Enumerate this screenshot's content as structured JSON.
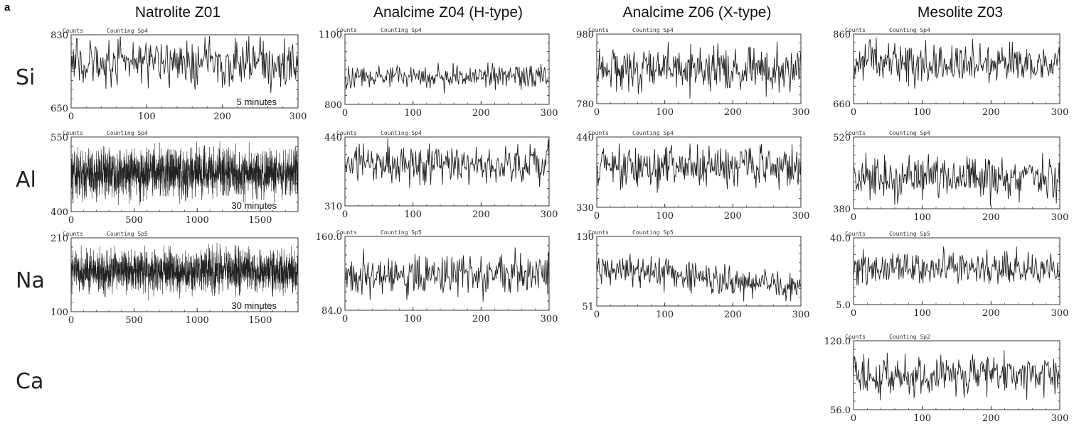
{
  "panel_letter": "a",
  "columns": [
    "Natrolite Z01",
    "Analcime Z04 (H-type)",
    "Analcime Z06 (X-type)",
    "Mesolite Z03"
  ],
  "rows": [
    "Si",
    "Al",
    "Na",
    "Ca"
  ],
  "chart_data": [
    {
      "type": "line",
      "id": "natrolite-si",
      "header": [
        "Counts",
        "Counting Sp4"
      ],
      "ylim": [
        650,
        830
      ],
      "y_tick_labels": [
        "830",
        "650"
      ],
      "xlim": [
        0,
        300
      ],
      "x_ticks": [
        0,
        100,
        200,
        300
      ],
      "note": "5 minutes",
      "series_mean": 760,
      "series_amplitude": 35,
      "points": 300
    },
    {
      "type": "line",
      "id": "analcime-h-si",
      "header": [
        "Counts",
        "Counting Sp4"
      ],
      "ylim": [
        800,
        1100
      ],
      "y_tick_labels": [
        "1100",
        "800"
      ],
      "xlim": [
        0,
        300
      ],
      "x_ticks": [
        0,
        100,
        200,
        300
      ],
      "series_mean": 920,
      "series_amplitude": 30,
      "points": 300
    },
    {
      "type": "line",
      "id": "analcime-x-si",
      "header": [
        "Counts",
        "Counting Sp4"
      ],
      "ylim": [
        780,
        980
      ],
      "y_tick_labels": [
        "980",
        "780"
      ],
      "xlim": [
        0,
        300
      ],
      "x_ticks": [
        0,
        100,
        200,
        300
      ],
      "series_mean": 880,
      "series_amplitude": 40,
      "points": 300
    },
    {
      "type": "line",
      "id": "mesolite-si",
      "header": [
        "Counts",
        "Counting Sp4"
      ],
      "ylim": [
        660,
        860
      ],
      "y_tick_labels": [
        "860",
        "660"
      ],
      "xlim": [
        0,
        300
      ],
      "x_ticks": [
        0,
        100,
        200,
        300
      ],
      "series_mean": 775,
      "series_amplitude": 35,
      "points": 300
    },
    {
      "type": "line",
      "id": "natrolite-al",
      "header": [
        "Counts",
        "Counting Sp4"
      ],
      "ylim": [
        400,
        550
      ],
      "y_tick_labels": [
        "550",
        "400"
      ],
      "xlim": [
        0,
        1800
      ],
      "x_ticks": [
        0,
        500,
        1000,
        1500
      ],
      "note": "30 minutes",
      "series_mean": 478,
      "series_amplitude": 28,
      "points": 1800
    },
    {
      "type": "line",
      "id": "analcime-h-al",
      "header": [
        "Counts",
        "Counting Sp4"
      ],
      "ylim": [
        310,
        440
      ],
      "y_tick_labels": [
        "440",
        "310"
      ],
      "xlim": [
        0,
        300
      ],
      "x_ticks": [
        0,
        100,
        200,
        300
      ],
      "series_mean": 390,
      "series_amplitude": 22,
      "points": 300
    },
    {
      "type": "line",
      "id": "analcime-x-al",
      "header": [
        "Counts",
        "Counting Sp4"
      ],
      "ylim": [
        330,
        440
      ],
      "y_tick_labels": [
        "440",
        "330"
      ],
      "xlim": [
        0,
        300
      ],
      "x_ticks": [
        0,
        100,
        200,
        300
      ],
      "series_mean": 392,
      "series_amplitude": 20,
      "points": 300
    },
    {
      "type": "line",
      "id": "mesolite-al",
      "header": [
        "Counts",
        "Counting Sp4"
      ],
      "ylim": [
        380,
        520
      ],
      "y_tick_labels": [
        "520",
        "380"
      ],
      "xlim": [
        0,
        300
      ],
      "x_ticks": [
        0,
        100,
        200,
        300
      ],
      "series_mean": 440,
      "series_amplitude": 24,
      "points": 300
    },
    {
      "type": "line",
      "id": "natrolite-na",
      "header": [
        "Counts",
        "Counting Sp5"
      ],
      "ylim": [
        100,
        210
      ],
      "y_tick_labels": [
        "210",
        "100"
      ],
      "xlim": [
        0,
        1800
      ],
      "x_ticks": [
        0,
        500,
        1000,
        1500
      ],
      "note": "30 minutes",
      "series_mean": 160,
      "series_amplitude": 18,
      "points": 1800
    },
    {
      "type": "line",
      "id": "analcime-h-na",
      "header": [
        "Counts",
        "Counting Sp5"
      ],
      "ylim": [
        84.0,
        160.0
      ],
      "y_tick_labels": [
        "160.0",
        "84.0"
      ],
      "xlim": [
        0,
        300
      ],
      "x_ticks": [
        0,
        100,
        200,
        300
      ],
      "series_mean": 120,
      "series_amplitude": 13,
      "points": 300
    },
    {
      "type": "line",
      "id": "analcime-x-na",
      "header": [
        "Counts",
        "Counting Sp5"
      ],
      "ylim": [
        51,
        130
      ],
      "y_tick_labels": [
        "130",
        "51"
      ],
      "xlim": [
        0,
        300
      ],
      "x_ticks": [
        0,
        100,
        200,
        300
      ],
      "series_mean": 95,
      "series_amplitude": 10,
      "trend_end": 72,
      "points": 300
    },
    {
      "type": "line",
      "id": "mesolite-na",
      "header": [
        "Counts",
        "Counting Sp5"
      ],
      "ylim": [
        5.0,
        40.0
      ],
      "y_tick_labels": [
        "40.0",
        "5.0"
      ],
      "xlim": [
        0,
        300
      ],
      "x_ticks": [
        0,
        100,
        200,
        300
      ],
      "series_mean": 24,
      "series_amplitude": 5,
      "points": 300
    },
    {
      "type": "line",
      "id": "mesolite-ca",
      "header": [
        "Counts",
        "Counting Sp2"
      ],
      "ylim": [
        56.0,
        120.0
      ],
      "y_tick_labels": [
        "120.0",
        "56.0"
      ],
      "xlim": [
        0,
        300
      ],
      "x_ticks": [
        0,
        100,
        200,
        300
      ],
      "series_mean": 88,
      "series_amplitude": 11,
      "points": 300
    }
  ],
  "colors": {
    "line": "#222222",
    "frame": "#333333",
    "text": "#111111"
  }
}
